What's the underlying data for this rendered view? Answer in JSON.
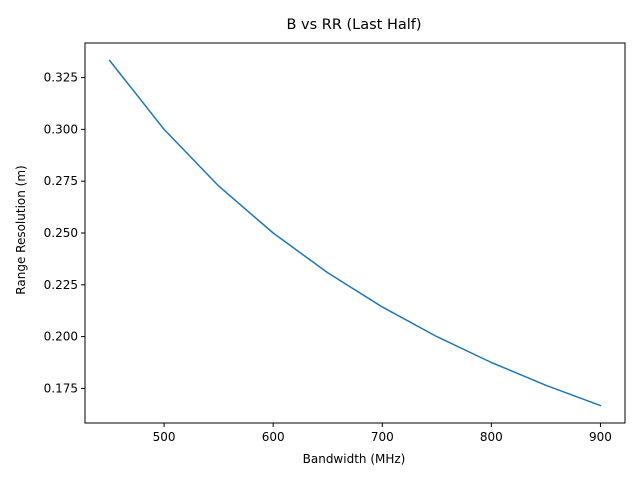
{
  "chart_data": {
    "type": "line",
    "title": "B vs RR (Last Half)",
    "xlabel": "Bandwidth (MHz)",
    "ylabel": "Range Resolution (m)",
    "xlim": [
      427.5,
      922.5
    ],
    "ylim": [
      0.1583,
      0.3417
    ],
    "xticks": [
      500,
      600,
      700,
      800,
      900
    ],
    "yticks": [
      0.175,
      0.2,
      0.225,
      0.25,
      0.275,
      0.3,
      0.325
    ],
    "grid": false,
    "series": [
      {
        "color": "#1f77b4",
        "x": [
          450,
          500,
          550,
          600,
          650,
          700,
          750,
          800,
          850,
          900
        ],
        "y": [
          0.3333,
          0.3,
          0.2727,
          0.25,
          0.2308,
          0.2143,
          0.2,
          0.1875,
          0.1765,
          0.1667
        ]
      }
    ]
  }
}
